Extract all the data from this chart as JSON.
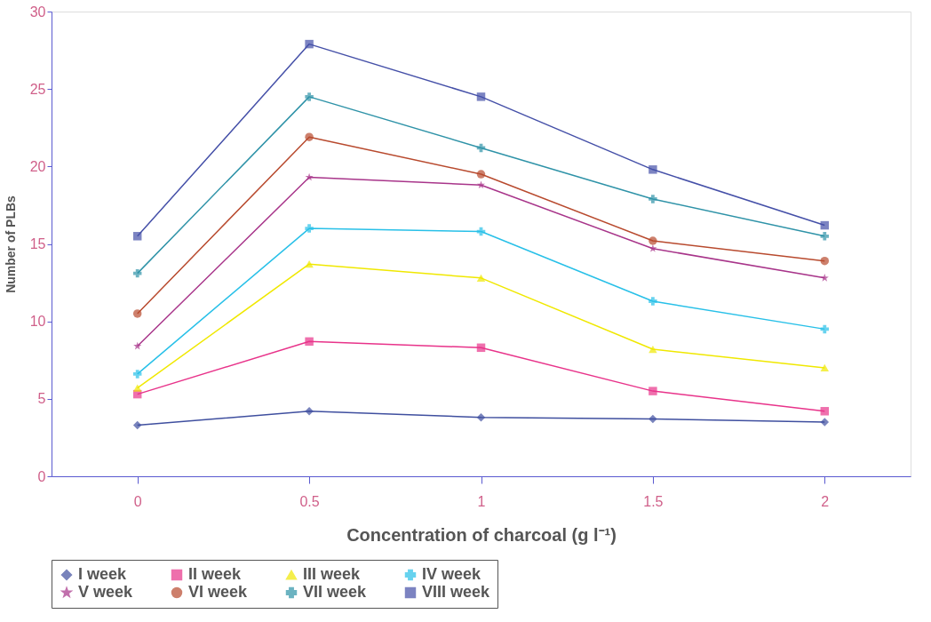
{
  "chart_data": {
    "type": "line",
    "xlabel": "Concentration of charcoal (g l⁻¹)",
    "ylabel": "Number of PLBs",
    "categories": [
      "0",
      "0.5",
      "1",
      "1.5",
      "2"
    ],
    "ylim": [
      0,
      30
    ],
    "yticks": [
      0,
      5,
      10,
      15,
      20,
      25,
      30
    ],
    "grid": false,
    "legend": "bottom",
    "series": [
      {
        "name": "I week",
        "color": "#3f4f9f",
        "marker": "diamond",
        "values": [
          3.3,
          4.2,
          3.8,
          3.7,
          3.5
        ]
      },
      {
        "name": "II week",
        "color": "#e8338a",
        "marker": "square",
        "values": [
          5.3,
          8.7,
          8.3,
          5.5,
          4.2
        ]
      },
      {
        "name": "III week",
        "color": "#f0e800",
        "marker": "triangle",
        "values": [
          5.7,
          13.7,
          12.8,
          8.2,
          7.0
        ]
      },
      {
        "name": "IV week",
        "color": "#28c0e8",
        "marker": "cross",
        "values": [
          6.6,
          16.0,
          15.8,
          11.3,
          9.5
        ]
      },
      {
        "name": "V week",
        "color": "#a8358a",
        "marker": "star",
        "values": [
          8.4,
          19.3,
          18.8,
          14.7,
          12.8
        ]
      },
      {
        "name": "VI week",
        "color": "#b84a2e",
        "marker": "circle",
        "values": [
          10.5,
          21.9,
          19.5,
          15.2,
          13.9
        ]
      },
      {
        "name": "VII week",
        "color": "#2f93a8",
        "marker": "cross",
        "values": [
          13.1,
          24.5,
          21.2,
          17.9,
          15.5
        ]
      },
      {
        "name": "VIII week",
        "color": "#4550a8",
        "marker": "square",
        "values": [
          15.5,
          27.9,
          24.5,
          19.8,
          16.2
        ]
      }
    ]
  }
}
